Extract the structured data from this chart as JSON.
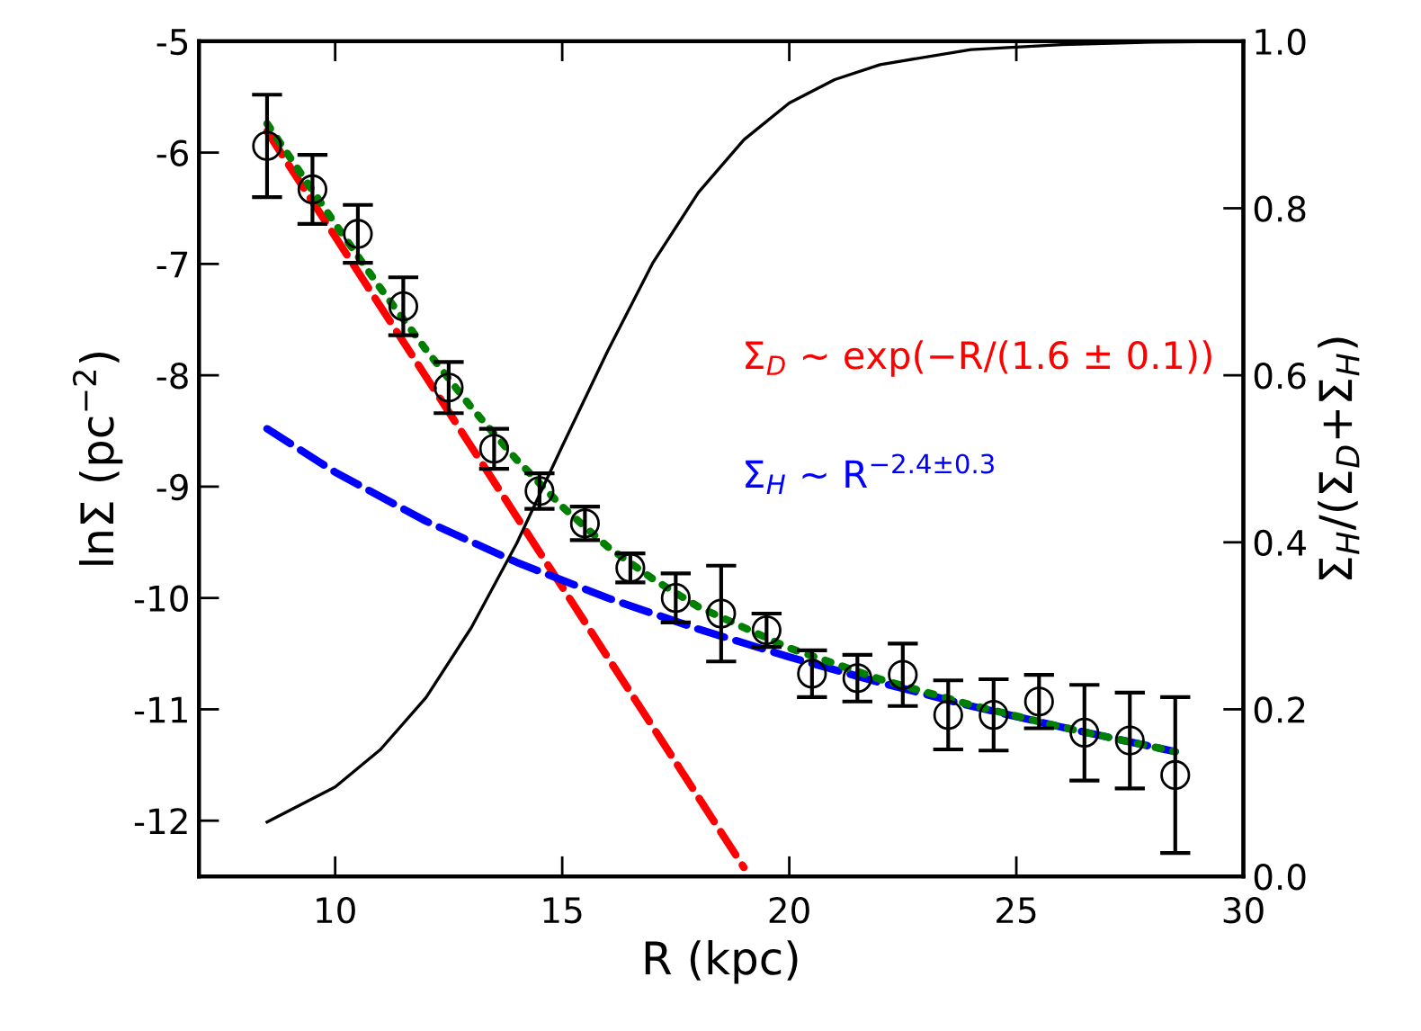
{
  "chart_data": {
    "type": "scatter",
    "xlabel": "R (kpc)",
    "ylabel": "lnΣ (pc$^{−2}$)",
    "y2label": "Σ$_{H}$/(Σ$_{D}$+Σ$_{H}$)",
    "xlim": [
      7,
      30
    ],
    "xticks": [
      10,
      15,
      20,
      25,
      30
    ],
    "ylim": [
      -12.5,
      -5
    ],
    "yticks": [
      -12,
      -11,
      -10,
      -9,
      -8,
      -7,
      -6,
      -5
    ],
    "y2lim": [
      0,
      1
    ],
    "y2ticks": [
      {
        "value": 0,
        "label": "0.0"
      },
      {
        "value": 0.2,
        "label": "0.2"
      },
      {
        "value": 0.4,
        "label": "0.4"
      },
      {
        "value": 0.6,
        "label": "0.6"
      },
      {
        "value": 0.8,
        "label": "0.8"
      },
      {
        "value": 1,
        "label": "1.0"
      }
    ],
    "grid": false,
    "series": [
      {
        "type": "line",
        "color": "#000000",
        "axis": "y2",
        "line_style": "solid",
        "marker": "none",
        "x": [
          8.5,
          10,
          11,
          12,
          13,
          14,
          15,
          16,
          17,
          18,
          19,
          20,
          21,
          22,
          24,
          26,
          28,
          30
        ],
        "values": [
          0.065,
          0.107,
          0.152,
          0.214,
          0.298,
          0.399,
          0.515,
          0.629,
          0.735,
          0.819,
          0.882,
          0.926,
          0.954,
          0.972,
          0.99,
          0.996,
          0.999,
          1.0
        ]
      },
      {
        "type": "line",
        "name": "Σ$_{D}$ ∼ exp(−R/(1.6 ± 0.1))",
        "color": "#ff0000",
        "line_style": "dashed",
        "marker": "none",
        "x": [
          8.5,
          19.0
        ],
        "values": [
          -5.81,
          -12.42
        ]
      },
      {
        "type": "line",
        "name": "Σ$_{H}$ ∼ R$^{−2.4±0.3}$",
        "color": "#0000ff",
        "line_style": "dashed",
        "marker": "none",
        "x": [
          8.5,
          10,
          12,
          14,
          16,
          18,
          20,
          22,
          24,
          26,
          28.5
        ],
        "values": [
          -8.48,
          -8.87,
          -9.31,
          -9.68,
          -10.0,
          -10.28,
          -10.53,
          -10.76,
          -10.97,
          -11.16,
          -11.38
        ]
      },
      {
        "type": "line",
        "color": "#008000",
        "line_style": "dotted",
        "marker": "none",
        "x": [
          8.5,
          10,
          11,
          12,
          13,
          14,
          15,
          16,
          17,
          18,
          20,
          22,
          24,
          26,
          28.5
        ],
        "values": [
          -5.74,
          -6.64,
          -7.22,
          -7.77,
          -8.29,
          -8.76,
          -9.18,
          -9.54,
          -9.83,
          -10.08,
          -10.45,
          -10.73,
          -10.96,
          -11.16,
          -11.38
        ]
      },
      {
        "color": "#000000",
        "marker": "circle",
        "x": [
          8.5,
          9.5,
          10.5,
          11.5,
          12.5,
          13.5,
          14.5,
          15.5,
          16.5,
          17.5,
          18.5,
          19.5,
          20.5,
          21.5,
          22.5,
          23.5,
          24.5,
          25.5,
          26.5,
          27.5,
          28.5
        ],
        "values": [
          -5.94,
          -6.33,
          -6.73,
          -7.38,
          -8.11,
          -8.66,
          -9.04,
          -9.33,
          -9.73,
          -10.0,
          -10.14,
          -10.29,
          -10.68,
          -10.72,
          -10.69,
          -11.05,
          -11.05,
          -10.93,
          -11.21,
          -11.28,
          -11.59
        ],
        "errors": [
          0.46,
          0.31,
          0.26,
          0.26,
          0.23,
          0.18,
          0.16,
          0.15,
          0.13,
          0.22,
          0.43,
          0.15,
          0.21,
          0.21,
          0.28,
          0.31,
          0.32,
          0.24,
          0.43,
          0.43,
          0.7
        ]
      }
    ]
  }
}
